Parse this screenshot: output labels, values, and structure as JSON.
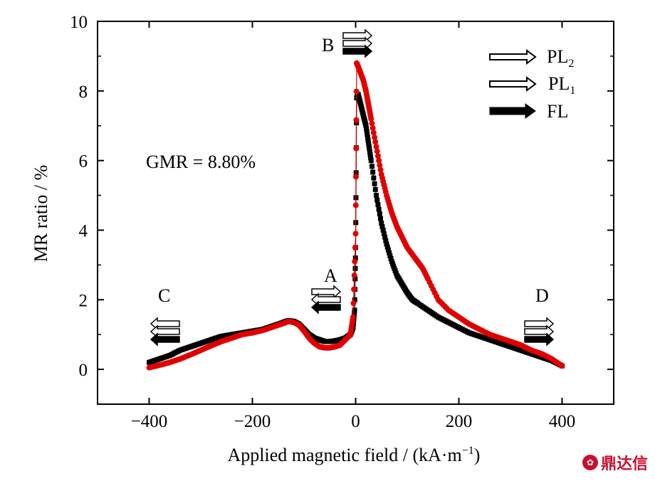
{
  "chart_data": {
    "type": "scatter",
    "title": "",
    "xlabel": "Applied magnetic field / (kA·m",
    "xlabel_sup": "−1",
    "xlabel_tail": ")",
    "ylabel": "MR ratio / %",
    "xlim": [
      -500,
      500
    ],
    "ylim": [
      -1,
      10
    ],
    "xticks": [
      -400,
      -200,
      0,
      200,
      400
    ],
    "xtick_labels": [
      "−400",
      "−200",
      "0",
      "200",
      "400"
    ],
    "yticks": [
      0,
      2,
      4,
      6,
      8,
      10
    ],
    "ytick_labels": [
      "0",
      "2",
      "4",
      "6",
      "8",
      "10"
    ],
    "grid": false,
    "legend_position": "top-right",
    "annotations": {
      "gmr": "GMR = 8.80%",
      "A": "A",
      "B": "B",
      "C": "C",
      "D": "D"
    },
    "legend": [
      {
        "base": "PL",
        "sub": "2",
        "arrow": "hollow"
      },
      {
        "base": "PL",
        "sub": "1",
        "arrow": "hollow"
      },
      {
        "base": "FL",
        "sub": "",
        "arrow": "solid"
      }
    ],
    "series": [
      {
        "color": "#000000",
        "marker": "square",
        "x": [
          -400,
          -380,
          -360,
          -340,
          -320,
          -300,
          -280,
          -260,
          -240,
          -220,
          -200,
          -180,
          -160,
          -140,
          -130,
          -120,
          -110,
          -100,
          -90,
          -80,
          -70,
          -60,
          -50,
          -40,
          -30,
          -20,
          -10,
          -5,
          -2,
          0,
          2,
          5,
          10,
          15,
          20,
          25,
          30,
          40,
          50,
          60,
          70,
          80,
          90,
          100,
          110,
          120,
          140,
          160,
          180,
          200,
          220,
          240,
          260,
          280,
          300,
          320,
          340,
          360,
          380,
          400
        ],
        "y": [
          0.2,
          0.3,
          0.4,
          0.55,
          0.65,
          0.75,
          0.85,
          0.95,
          1.0,
          1.05,
          1.1,
          1.15,
          1.25,
          1.35,
          1.4,
          1.38,
          1.3,
          1.15,
          1.0,
          0.9,
          0.85,
          0.8,
          0.8,
          0.82,
          0.85,
          0.9,
          1.0,
          1.2,
          1.7,
          3.5,
          7.8,
          7.9,
          7.6,
          7.3,
          7.0,
          6.5,
          6.0,
          5.0,
          4.2,
          3.6,
          3.1,
          2.7,
          2.45,
          2.2,
          2.0,
          1.9,
          1.7,
          1.5,
          1.35,
          1.2,
          1.05,
          0.95,
          0.85,
          0.75,
          0.65,
          0.55,
          0.45,
          0.35,
          0.25,
          0.1
        ]
      },
      {
        "color": "#e00000",
        "marker": "circle",
        "x": [
          -400,
          -380,
          -360,
          -340,
          -320,
          -300,
          -280,
          -260,
          -240,
          -220,
          -200,
          -180,
          -160,
          -140,
          -130,
          -120,
          -110,
          -100,
          -90,
          -80,
          -70,
          -60,
          -50,
          -40,
          -30,
          -20,
          -10,
          -5,
          0,
          2,
          5,
          10,
          15,
          20,
          25,
          30,
          40,
          50,
          60,
          70,
          80,
          90,
          100,
          110,
          120,
          130,
          140,
          160,
          180,
          200,
          220,
          240,
          260,
          280,
          300,
          320,
          340,
          360,
          380,
          400
        ],
        "y": [
          0.05,
          0.12,
          0.2,
          0.3,
          0.42,
          0.55,
          0.68,
          0.8,
          0.9,
          1.0,
          1.05,
          1.12,
          1.22,
          1.32,
          1.38,
          1.35,
          1.28,
          1.1,
          0.9,
          0.75,
          0.65,
          0.62,
          0.62,
          0.65,
          0.7,
          0.85,
          1.0,
          1.5,
          3.9,
          8.8,
          8.7,
          8.5,
          8.3,
          8.0,
          7.6,
          7.2,
          6.4,
          5.6,
          5.0,
          4.5,
          4.1,
          3.8,
          3.5,
          3.3,
          3.1,
          2.9,
          2.6,
          2.0,
          1.7,
          1.5,
          1.3,
          1.15,
          1.0,
          0.9,
          0.8,
          0.7,
          0.55,
          0.45,
          0.3,
          0.1
        ]
      }
    ]
  },
  "watermark": {
    "icon": "dingdaxin-logo-icon",
    "text": "鼎达信"
  }
}
